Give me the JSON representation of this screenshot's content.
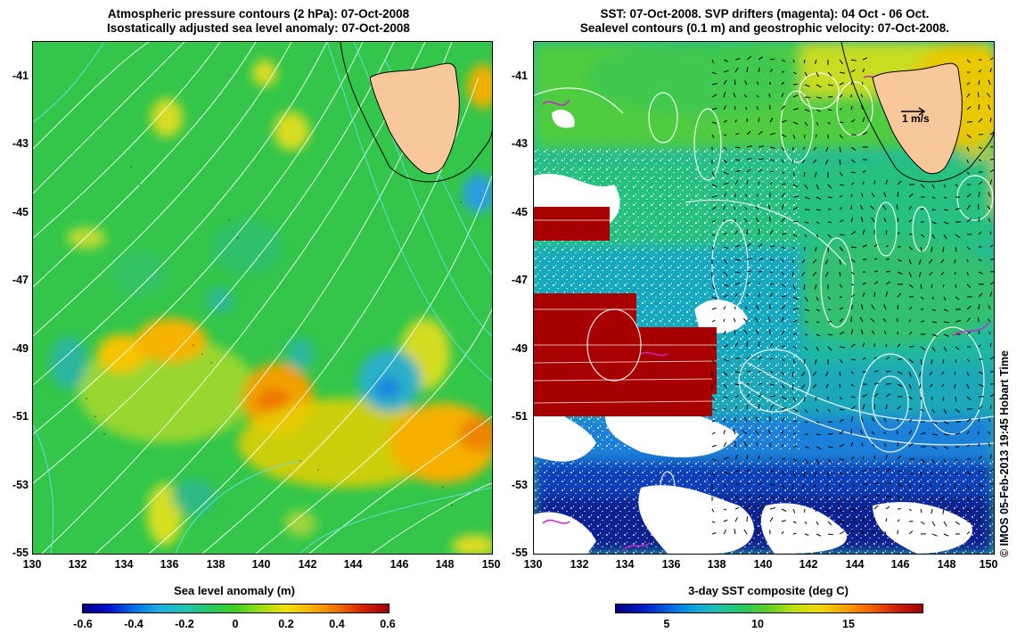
{
  "left_panel": {
    "title_line1": "Atmospheric pressure contours (2 hPa): 07-Oct-2008",
    "title_line2": "Isostatically adjusted sea level anomaly: 07-Oct-2008",
    "lat_labels": [
      "-41",
      "-43",
      "-45",
      "-47",
      "-49",
      "-51",
      "-53",
      "-55"
    ],
    "lon_labels": [
      "130",
      "132",
      "134",
      "136",
      "138",
      "140",
      "142",
      "144",
      "146",
      "148",
      "150"
    ],
    "colorbar": {
      "label": "Sea level anomaly (m)",
      "ticks": [
        "-0.6",
        "-0.4",
        "-0.2",
        "0",
        "0.2",
        "0.4",
        "0.6"
      ],
      "range": [
        -0.6,
        0.6
      ]
    }
  },
  "right_panel": {
    "title_line1": "SST: 07-Oct-2008. SVP drifters (magenta): 04 Oct - 06 Oct.",
    "title_line2": "Sealevel contours (0.1 m) and geostrophic velocity: 07-Oct-2008.",
    "lat_labels": [
      "-41",
      "-43",
      "-45",
      "-47",
      "-49",
      "-51",
      "-53",
      "-55"
    ],
    "lon_labels": [
      "130",
      "132",
      "134",
      "136",
      "138",
      "140",
      "142",
      "144",
      "146",
      "148",
      "150"
    ],
    "velocity_scale": "1 m/s",
    "colorbar": {
      "label": "3-day SST composite (deg C)",
      "ticks": [
        "5",
        "10",
        "15"
      ],
      "range": [
        1,
        19
      ]
    }
  },
  "credit": "© IMOS 05-Feb-2013 19:45 Hobart Time",
  "colors": {
    "land": "#f9c89a",
    "ocean_green": "#3ccc3c",
    "missing_data": "#a80000"
  }
}
